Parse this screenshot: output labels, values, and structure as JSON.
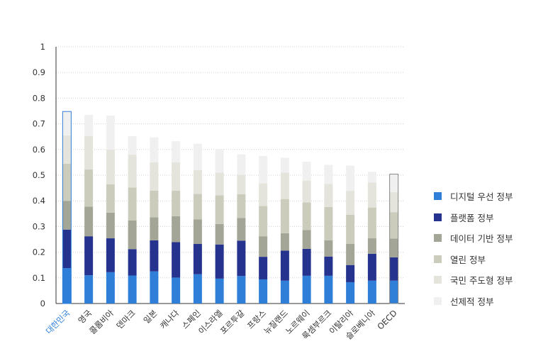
{
  "chart_data": {
    "type": "bar",
    "stacked": true,
    "ylim": [
      0,
      1
    ],
    "yticks": [
      "0",
      "0.1",
      "0.2",
      "0.3",
      "0.4",
      "0.5",
      "0.6",
      "0.7",
      "0.8",
      "0.9",
      "1"
    ],
    "grid": true,
    "legend_position": "right",
    "categories": [
      "대한민국",
      "영국",
      "콜롬비아",
      "덴마크",
      "일본",
      "캐나다",
      "스페인",
      "이스라엘",
      "포르투갈",
      "프랑스",
      "뉴질랜드",
      "노르웨이",
      "룩셈부르크",
      "이탈리아",
      "슬로베니아",
      "OECD"
    ],
    "highlight_categories": [
      "대한민국",
      "OECD"
    ],
    "series": [
      {
        "name": "디지털 우선 정부",
        "color": "#2f7fd9",
        "values": [
          0.138,
          0.11,
          0.122,
          0.109,
          0.125,
          0.101,
          0.114,
          0.097,
          0.107,
          0.094,
          0.089,
          0.108,
          0.108,
          0.083,
          0.089,
          0.089
        ]
      },
      {
        "name": "플랫폼 정부",
        "color": "#25338f",
        "values": [
          0.15,
          0.152,
          0.132,
          0.103,
          0.121,
          0.138,
          0.118,
          0.133,
          0.138,
          0.088,
          0.117,
          0.105,
          0.075,
          0.067,
          0.105,
          0.091
        ]
      },
      {
        "name": "데이터 기반 정부",
        "color": "#a3a696",
        "values": [
          0.112,
          0.115,
          0.1,
          0.112,
          0.09,
          0.101,
          0.096,
          0.08,
          0.088,
          0.08,
          0.068,
          0.073,
          0.063,
          0.082,
          0.06,
          0.073
        ]
      },
      {
        "name": "열린 정부",
        "color": "#ccccbd",
        "values": [
          0.145,
          0.145,
          0.11,
          0.128,
          0.104,
          0.1,
          0.099,
          0.112,
          0.093,
          0.118,
          0.133,
          0.108,
          0.13,
          0.114,
          0.12,
          0.103
        ]
      },
      {
        "name": "국민 주도형 정부",
        "color": "#e4e4dc",
        "values": [
          0.11,
          0.13,
          0.135,
          0.128,
          0.11,
          0.11,
          0.093,
          0.088,
          0.075,
          0.088,
          0.103,
          0.085,
          0.09,
          0.093,
          0.097,
          0.078
        ]
      },
      {
        "name": "선제적 정부",
        "color": "#f0f0f0",
        "values": [
          0.093,
          0.083,
          0.133,
          0.072,
          0.097,
          0.082,
          0.102,
          0.092,
          0.08,
          0.107,
          0.058,
          0.073,
          0.074,
          0.098,
          0.042,
          0.07
        ]
      }
    ]
  }
}
